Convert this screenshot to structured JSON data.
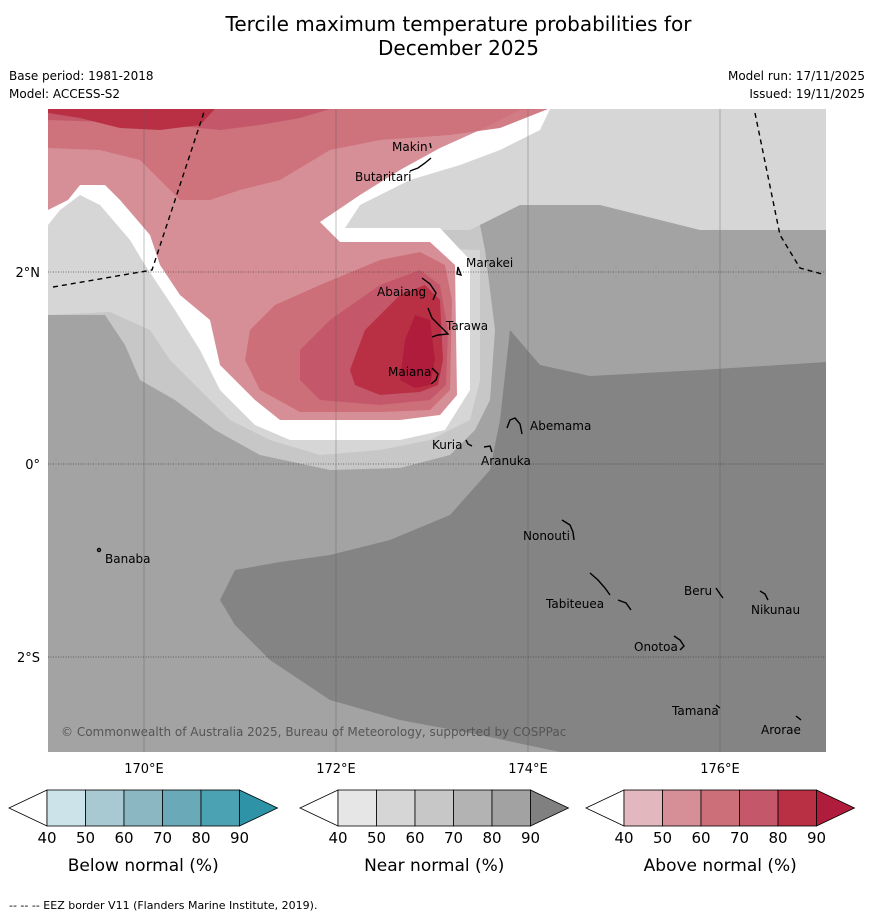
{
  "title_line1": "Tercile maximum temperature probabilities for",
  "title_line2": "December 2025",
  "base_period": "Base period: 1981-2018",
  "model": "Model: ACCESS-S2",
  "model_run": "Model run: 17/11/2025",
  "issued": "Issued: 19/11/2025",
  "lon_labels": [
    "170°E",
    "172°E",
    "174°E",
    "176°E"
  ],
  "lat_labels": [
    "2°N",
    "0°",
    "2°S"
  ],
  "islands": [
    "Makin",
    "Butaritari",
    "Marakei",
    "Abaiang",
    "Tarawa",
    "Maiana",
    "Abemama",
    "Kuria",
    "Aranuka",
    "Nonouti",
    "Banaba",
    "Beru",
    "Nikunau",
    "Tabiteuea",
    "Onotoa",
    "Tamana",
    "Arorae"
  ],
  "copyright": "© Commonwealth of Australia 2025, Bureau of Meteorology, supported by COSPPac",
  "colorbars": [
    {
      "label": "Below normal (%)",
      "ticks": [
        "40",
        "50",
        "60",
        "70",
        "80",
        "90"
      ],
      "colors": [
        "#ffffff",
        "#cde3ea",
        "#a8c9d1",
        "#8bb7c3",
        "#6aa9b7",
        "#4aa2b3",
        "#2f93a8"
      ]
    },
    {
      "label": "Near normal (%)",
      "ticks": [
        "40",
        "50",
        "60",
        "70",
        "80",
        "90"
      ],
      "colors": [
        "#ffffff",
        "#e6e6e6",
        "#d6d6d6",
        "#c7c7c7",
        "#b3b3b3",
        "#a2a2a2",
        "#808080"
      ]
    },
    {
      "label": "Above normal (%)",
      "ticks": [
        "40",
        "50",
        "60",
        "70",
        "80",
        "90"
      ],
      "colors": [
        "#ffffff",
        "#e2b7bd",
        "#d78f97",
        "#cd6f79",
        "#c4586a",
        "#b93045",
        "#b01c3c"
      ]
    }
  ],
  "footer": "--  --  -- EEZ border V11 (Flanders Marine Institute, 2019)."
}
